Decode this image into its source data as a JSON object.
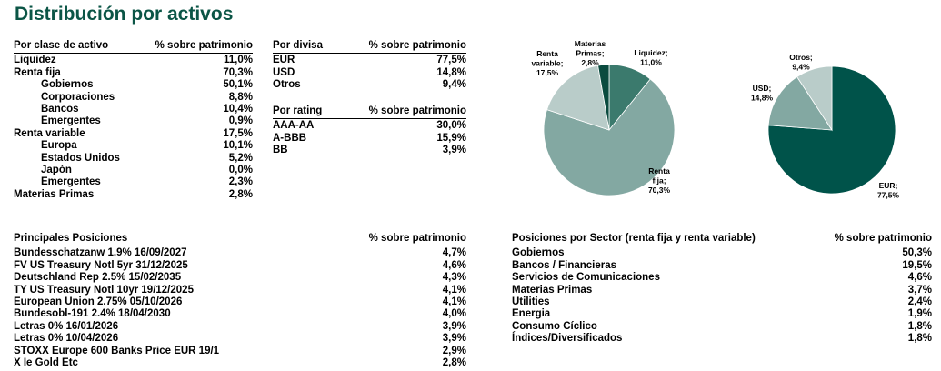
{
  "title": "Distribución por activos",
  "asset_class": {
    "header": {
      "label": "Por clase de activo",
      "value": "% sobre patrimonio"
    },
    "rows": [
      {
        "label": "Liquidez",
        "value": "11,0%"
      },
      {
        "label": "Renta fija",
        "value": "70,3%"
      },
      {
        "label": "Gobiernos",
        "value": "50,1%"
      },
      {
        "label": "Corporaciones",
        "value": "8,8%"
      },
      {
        "label": "Bancos",
        "value": "10,4%"
      },
      {
        "label": "Emergentes",
        "value": "0,9%"
      },
      {
        "label": "Renta variable",
        "value": "17,5%"
      },
      {
        "label": "Europa",
        "value": "10,1%"
      },
      {
        "label": "Estados Unidos",
        "value": "5,2%"
      },
      {
        "label": "Japón",
        "value": "0,0%"
      },
      {
        "label": "Emergentes",
        "value": "2,3%"
      },
      {
        "label": "Materias Primas",
        "value": "2,8%"
      }
    ]
  },
  "currency": {
    "header": {
      "label": "Por divisa",
      "value": "% sobre patrimonio"
    },
    "rows": [
      {
        "label": "EUR",
        "value": "77,5%"
      },
      {
        "label": "USD",
        "value": "14,8%"
      },
      {
        "label": "Otros",
        "value": "9,4%"
      }
    ]
  },
  "rating": {
    "header": {
      "label": "Por rating",
      "value": "% sobre patrimonio"
    },
    "rows": [
      {
        "label": "AAA-AA",
        "value": "30,0%"
      },
      {
        "label": "A-BBB",
        "value": "15,9%"
      },
      {
        "label": "BB",
        "value": "3,9%"
      }
    ]
  },
  "positions": {
    "header": {
      "label": "Principales Posiciones",
      "value": "% sobre patrimonio"
    },
    "rows": [
      {
        "label": "Bundesschatzanw 1.9% 16/09/2027",
        "value": "4,7%"
      },
      {
        "label": "FV US Treasury Notl 5yr 31/12/2025",
        "value": "4,6%"
      },
      {
        "label": "Deutschland Rep 2.5% 15/02/2035",
        "value": "4,3%"
      },
      {
        "label": "TY US Treasury Notl 10yr 19/12/2025",
        "value": "4,1%"
      },
      {
        "label": "European Union 2.75% 05/10/2026",
        "value": "4,1%"
      },
      {
        "label": "Bundesobl-191 2.4% 18/04/2030",
        "value": "4,0%"
      },
      {
        "label": "Letras 0% 16/01/2026",
        "value": "3,9%"
      },
      {
        "label": "Letras 0% 10/04/2026",
        "value": "3,9%"
      },
      {
        "label": "STOXX Europe 600 Banks Price EUR 19/1",
        "value": "2,9%"
      },
      {
        "label": "X Ie Gold Etc",
        "value": "2,8%"
      }
    ]
  },
  "sectors": {
    "header": {
      "label": "Posiciones por Sector (renta fija y renta variable)",
      "value": "% sobre patrimonio"
    },
    "rows": [
      {
        "label": "Gobiernos",
        "value": "50,3%"
      },
      {
        "label": "Bancos / Financieras",
        "value": "19,5%"
      },
      {
        "label": "Servicios de Comunicaciones",
        "value": "4,6%"
      },
      {
        "label": "Materias Primas",
        "value": "3,7%"
      },
      {
        "label": "Utilities",
        "value": "2,4%"
      },
      {
        "label": "Energia",
        "value": "1,9%"
      },
      {
        "label": "Consumo Cíclico",
        "value": "1,8%"
      },
      {
        "label": "Índices/Diversificados",
        "value": "1,8%"
      }
    ]
  },
  "chart_data": [
    {
      "type": "pie",
      "title": "",
      "slices": [
        {
          "name": "Liquidez",
          "value": 11.0,
          "label_lines": [
            "Liquidez;",
            "11,0%"
          ],
          "color": "#3b7a6d"
        },
        {
          "name": "Renta fija",
          "value": 70.3,
          "label_lines": [
            "Renta",
            "fija;",
            "70,3%"
          ],
          "color": "#83a8a2"
        },
        {
          "name": "Renta variable",
          "value": 17.5,
          "label_lines": [
            "Renta",
            "variable;",
            "17,5%"
          ],
          "color": "#b9ccc9"
        },
        {
          "name": "Materias Primas",
          "value": 2.8,
          "label_lines": [
            "Materias",
            "Primas;",
            "2,8%"
          ],
          "color": "#0a4b3f"
        }
      ]
    },
    {
      "type": "pie",
      "title": "",
      "slices": [
        {
          "name": "EUR",
          "value": 77.5,
          "label_lines": [
            "EUR;",
            "77,5%"
          ],
          "color": "#00534a"
        },
        {
          "name": "USD",
          "value": 14.8,
          "label_lines": [
            "USD;",
            "14,8%"
          ],
          "color": "#83a8a2"
        },
        {
          "name": "Otros",
          "value": 9.4,
          "label_lines": [
            "Otros;",
            "9,4%"
          ],
          "color": "#b9ccc9"
        }
      ]
    }
  ]
}
